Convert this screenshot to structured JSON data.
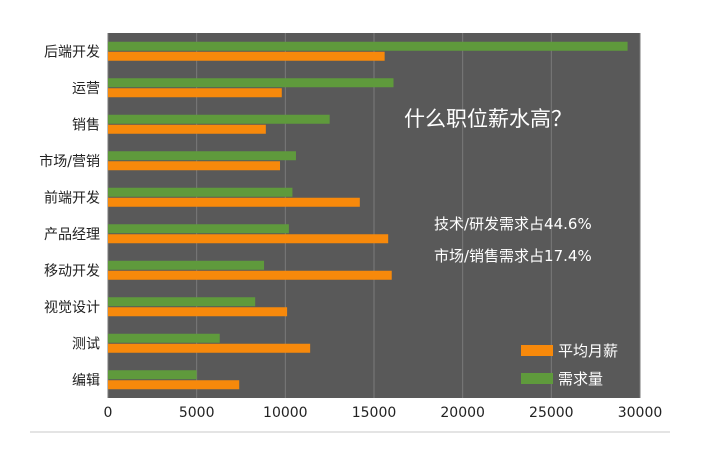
{
  "chart_data": {
    "type": "bar",
    "orientation": "horizontal",
    "title": "什么职位薪水高？",
    "annotations": [
      "技术/研发需求占44.6%",
      "市场/销售需求占17.4%"
    ],
    "categories": [
      "后端开发",
      "运营",
      "销售",
      "市场/营销",
      "前端开发",
      "产品经理",
      "移动开发",
      "视觉设计",
      "测试",
      "编辑"
    ],
    "series": [
      {
        "name": "需求量",
        "color": "#5f9a3c",
        "values": [
          29300,
          16100,
          12500,
          10600,
          10400,
          10200,
          8800,
          8300,
          6300,
          5000
        ]
      },
      {
        "name": "平均月薪",
        "color": "#f7890b",
        "values": [
          15600,
          9800,
          8900,
          9700,
          14200,
          15800,
          16000,
          10100,
          11400,
          7400
        ]
      }
    ],
    "xlim": [
      0,
      30000
    ],
    "xticks": [
      "0",
      "5000",
      "10000",
      "15000",
      "20000",
      "25000",
      "30000"
    ],
    "legend_position": "bottom-right",
    "legend": [
      "平均月薪",
      "需求量"
    ],
    "grid": "vertical",
    "plot_background": "#595959",
    "grid_color": "#7a7a7a"
  }
}
